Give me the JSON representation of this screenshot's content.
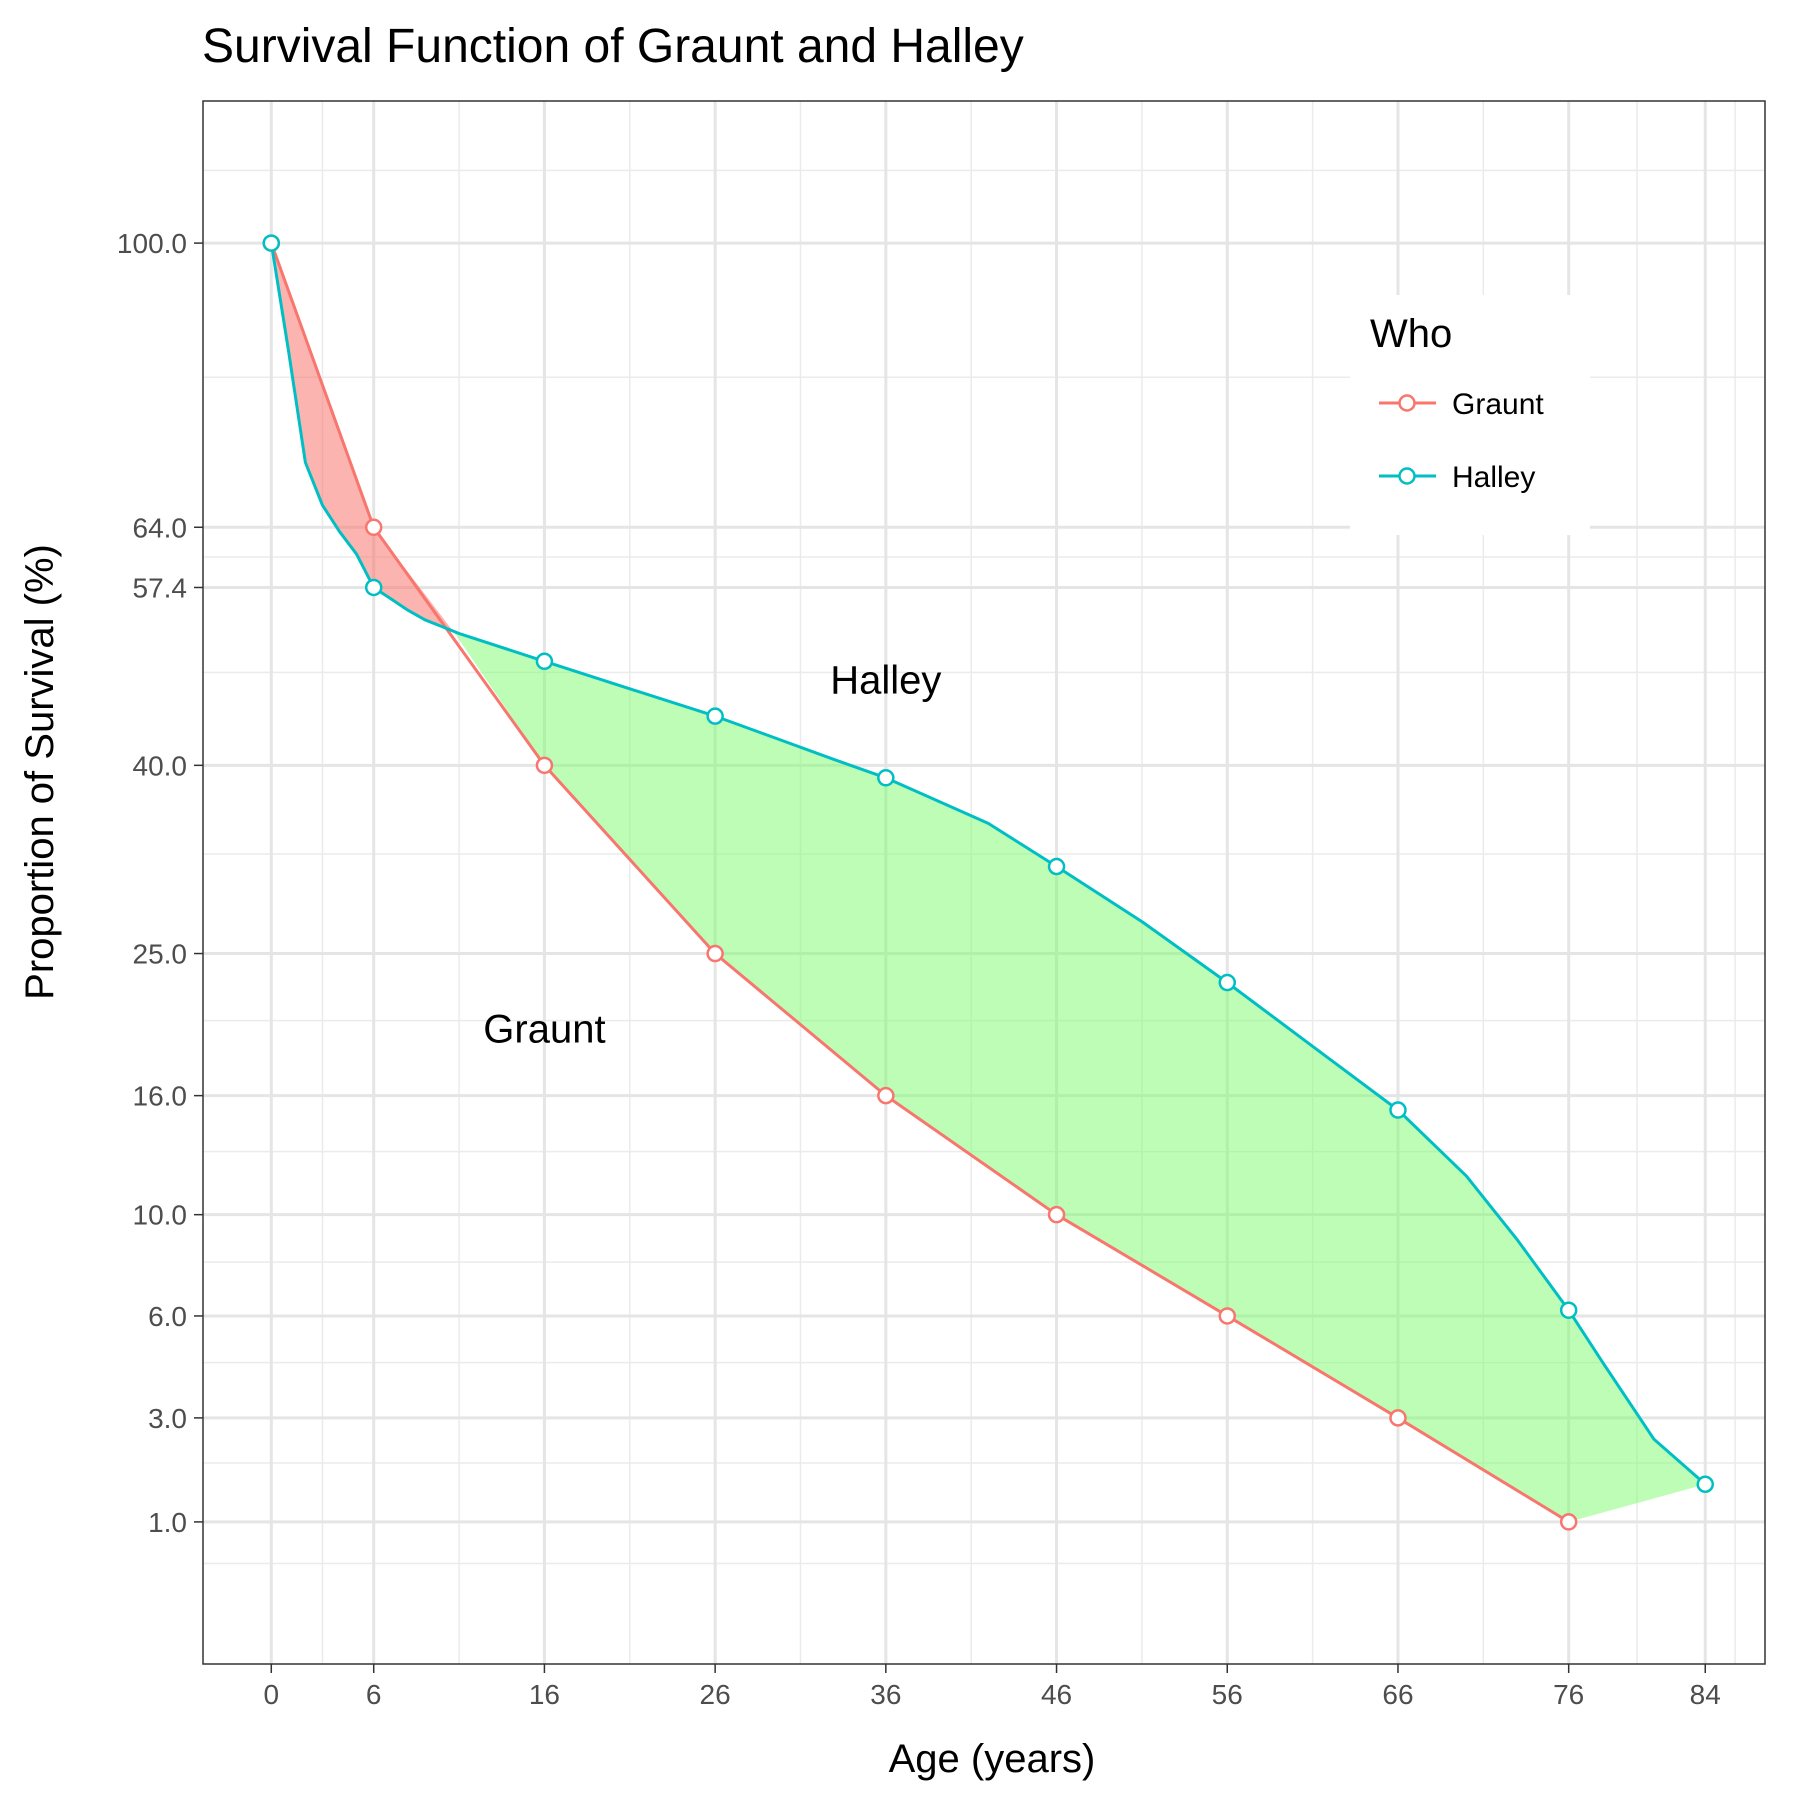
{
  "chart_data": {
    "type": "line",
    "title": "Survival Function of Graunt and Halley",
    "xlabel": "Age (years)",
    "ylabel": "Proportion of Survival (%)",
    "x_ticks": [
      0,
      6,
      16,
      26,
      36,
      46,
      56,
      66,
      76,
      84
    ],
    "y_ticks": [
      1.0,
      3.0,
      6.0,
      10.0,
      16.0,
      25.0,
      40.0,
      57.4,
      64.0,
      100.0
    ],
    "y_tick_labels": [
      "1.0",
      "3.0",
      "6.0",
      "10.0",
      "16.0",
      "25.0",
      "40.0",
      "57.4",
      "64.0",
      "100.0"
    ],
    "x_tick_labels": [
      "0",
      "6",
      "16",
      "26",
      "36",
      "46",
      "56",
      "66",
      "76",
      "84"
    ],
    "xlim": [
      -4,
      87.5
    ],
    "y_scale": "sqrt",
    "ylim": [
      0,
      121
    ],
    "grid": true,
    "legend": {
      "title": "Who",
      "placement": "top-right",
      "entries": [
        "Graunt",
        "Halley"
      ]
    },
    "series": [
      {
        "name": "Graunt",
        "color": "#f8766d",
        "points": [
          [
            0,
            100
          ],
          [
            6,
            64
          ],
          [
            16,
            40
          ],
          [
            26,
            25
          ],
          [
            36,
            16
          ],
          [
            46,
            10
          ],
          [
            56,
            6
          ],
          [
            66,
            3
          ],
          [
            76,
            1
          ]
        ],
        "line": [
          [
            0,
            100
          ],
          [
            6,
            64
          ],
          [
            16,
            40
          ],
          [
            26,
            25
          ],
          [
            36,
            16
          ],
          [
            46,
            10
          ],
          [
            56,
            6
          ],
          [
            66,
            3
          ],
          [
            76,
            1
          ]
        ]
      },
      {
        "name": "Halley",
        "color": "#00bfc4",
        "points": [
          [
            0,
            100
          ],
          [
            6,
            57.4
          ],
          [
            16,
            49.8
          ],
          [
            26,
            44.5
          ],
          [
            36,
            38.9
          ],
          [
            46,
            31.5
          ],
          [
            56,
            23.0
          ],
          [
            66,
            15.2
          ],
          [
            76,
            6.2
          ],
          [
            84,
            1.6
          ]
        ],
        "line": [
          [
            0,
            100
          ],
          [
            1,
            85.5
          ],
          [
            2,
            71.5
          ],
          [
            3,
            66.5
          ],
          [
            4,
            63.5
          ],
          [
            5,
            61
          ],
          [
            6,
            57.4
          ],
          [
            7,
            56.2
          ],
          [
            8,
            55
          ],
          [
            9,
            54
          ],
          [
            10,
            53.3
          ],
          [
            11,
            52.6
          ],
          [
            16,
            49.8
          ],
          [
            21,
            47.1
          ],
          [
            26,
            44.5
          ],
          [
            30,
            42.2
          ],
          [
            33,
            40.5
          ],
          [
            36,
            38.9
          ],
          [
            42,
            35
          ],
          [
            46,
            31.5
          ],
          [
            51,
            27.3
          ],
          [
            56,
            23.0
          ],
          [
            61,
            18.9
          ],
          [
            66,
            15.2
          ],
          [
            70,
            11.8
          ],
          [
            73,
            8.9
          ],
          [
            76,
            6.2
          ],
          [
            78,
            4.5
          ],
          [
            81,
            2.5
          ],
          [
            84,
            1.6
          ]
        ]
      }
    ],
    "fills": [
      {
        "color": "#f8766d",
        "opacity": 0.55,
        "from_series": "Graunt",
        "to_series": "Halley",
        "x_range": [
          0,
          10.8
        ]
      },
      {
        "color": "#7cfc6c",
        "opacity": 0.5,
        "from_series": "Halley",
        "to_series": "Graunt",
        "x_range": [
          10.8,
          84
        ]
      }
    ],
    "annotations": [
      {
        "text": "Halley",
        "x": 36,
        "y": 48
      },
      {
        "text": "Graunt",
        "x": 16,
        "y": 20
      }
    ]
  }
}
